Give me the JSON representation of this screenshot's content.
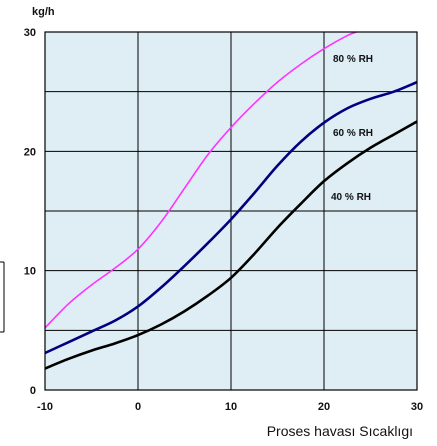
{
  "chart_data": {
    "type": "line",
    "title": "",
    "ylabel": "kg/h",
    "xlabel": "Proses havası Sıcaklıgı",
    "xlim": [
      -10,
      30
    ],
    "ylim": [
      0,
      30
    ],
    "x_ticks": [
      -10,
      0,
      10,
      20,
      30
    ],
    "y_ticks": [
      0,
      10,
      20,
      30
    ],
    "x_grid_step": 10,
    "y_grid_step": 5,
    "grid": true,
    "plot_background": "#dfeef4",
    "grid_color": "#000000",
    "legend": "inline-labels",
    "series": [
      {
        "name": "80 % RH",
        "color": "#ff33ff",
        "x": [
          -10,
          -7.5,
          -5,
          -2.5,
          0,
          2.5,
          5,
          7.5,
          10,
          12.5,
          15,
          17.5,
          20,
          22.5,
          23.5
        ],
        "y": [
          5.2,
          7.2,
          8.8,
          10.2,
          11.8,
          14.1,
          16.9,
          19.7,
          22.0,
          24.0,
          25.8,
          27.3,
          28.6,
          29.7,
          30.0
        ]
      },
      {
        "name": "60 % RH",
        "color": "#000080",
        "x": [
          -10,
          -7.5,
          -5,
          -2.5,
          0,
          2.5,
          5,
          7.5,
          10,
          12.5,
          15,
          17.5,
          20,
          22.5,
          25,
          27.5,
          30
        ],
        "y": [
          3.1,
          4.0,
          4.9,
          5.8,
          7.0,
          8.6,
          10.4,
          12.3,
          14.3,
          16.5,
          18.8,
          20.8,
          22.4,
          23.6,
          24.4,
          25.0,
          25.8
        ]
      },
      {
        "name": "40 % RH",
        "color": "#000000",
        "x": [
          -10,
          -7.5,
          -5,
          -2.5,
          0,
          2.5,
          5,
          7.5,
          10,
          12.5,
          15,
          17.5,
          20,
          22.5,
          25,
          27.5,
          30
        ],
        "y": [
          1.8,
          2.6,
          3.3,
          3.9,
          4.6,
          5.5,
          6.6,
          7.9,
          9.4,
          11.4,
          13.6,
          15.6,
          17.5,
          19.0,
          20.3,
          21.4,
          22.5
        ]
      }
    ]
  }
}
